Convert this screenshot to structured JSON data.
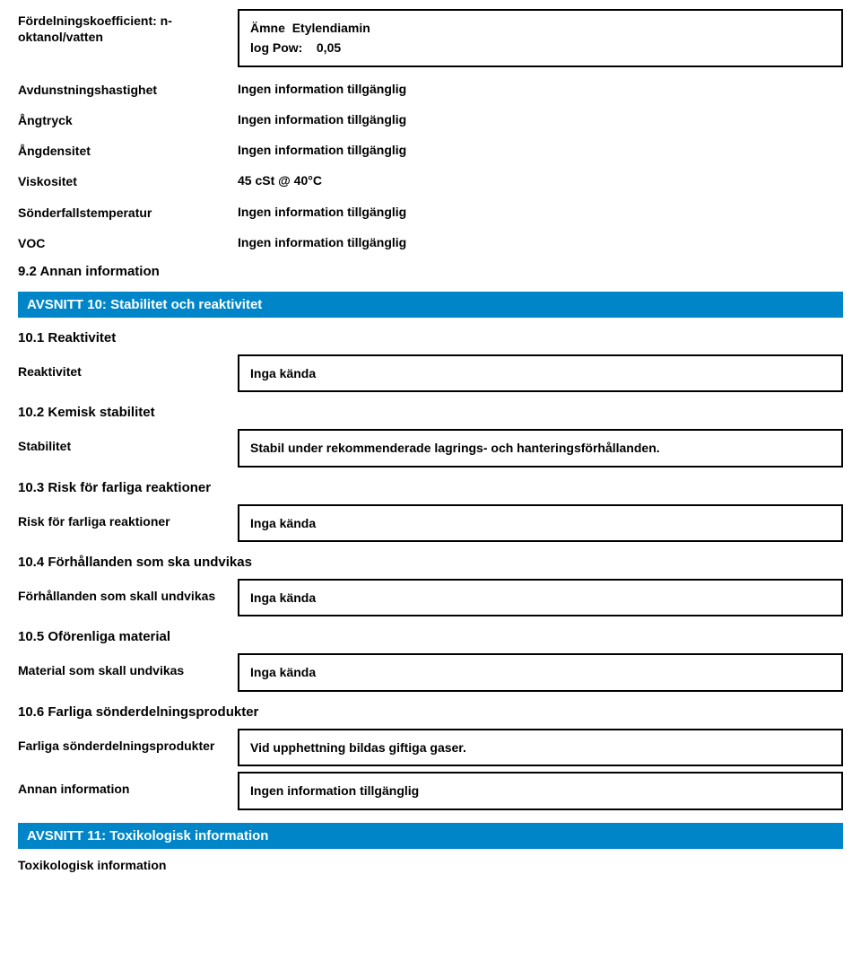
{
  "colors": {
    "bar_bg": "#0086c8",
    "bar_text": "#ffffff",
    "border": "#000000",
    "text": "#000000",
    "page_bg": "#ffffff"
  },
  "fonts": {
    "family": "Arial",
    "label_size_pt": 11,
    "heading_size_pt": 11
  },
  "top_box": {
    "line1_label": "Ämne",
    "line1_value": "Etylendiamin",
    "line2_label": "log Pow:",
    "line2_value": "0,05"
  },
  "props": {
    "partition_label": "Fördelningskoefficient: n-oktanol/vatten",
    "evap_label": "Avdunstningshastighet",
    "evap_value": "Ingen information tillgänglig",
    "vapour_pressure_label": "Ångtryck",
    "vapour_pressure_value": "Ingen information tillgänglig",
    "vapour_density_label": "Ångdensitet",
    "vapour_density_value": "Ingen information tillgänglig",
    "viscosity_label": "Viskositet",
    "viscosity_value": "45 cSt @ 40°C",
    "decomp_label": "Sönderfallstemperatur",
    "decomp_value": "Ingen information tillgänglig",
    "voc_label": "VOC",
    "voc_value": "Ingen information tillgänglig"
  },
  "sec9_2": "9.2 Annan information",
  "sec10_bar": "AVSNITT 10: Stabilitet och reaktivitet",
  "sec10": {
    "h1": "10.1 Reaktivitet",
    "reactivity_label": "Reaktivitet",
    "reactivity_value": "Inga kända",
    "h2": "10.2 Kemisk stabilitet",
    "stability_label": "Stabilitet",
    "stability_value": "Stabil under rekommenderade lagrings- och hanteringsförhållanden.",
    "h3": "10.3 Risk för farliga reaktioner",
    "haz_react_label": "Risk för farliga reaktioner",
    "haz_react_value": "Inga kända",
    "h4": "10.4 Förhållanden som ska undvikas",
    "cond_avoid_label": "Förhållanden som skall undvikas",
    "cond_avoid_value": "Inga kända",
    "h5": "10.5 Oförenliga material",
    "mat_avoid_label": "Material som skall undvikas",
    "mat_avoid_value": "Inga kända",
    "h6": "10.6 Farliga sönderdelningsprodukter",
    "decomp_prod_label": "Farliga sönderdelningsprodukter",
    "decomp_prod_value": "Vid upphettning bildas giftiga gaser.",
    "other_label": "Annan information",
    "other_value": "Ingen information tillgänglig"
  },
  "sec11_bar": "AVSNITT 11: Toxikologisk information",
  "sec11_sub": "Toxikologisk information"
}
